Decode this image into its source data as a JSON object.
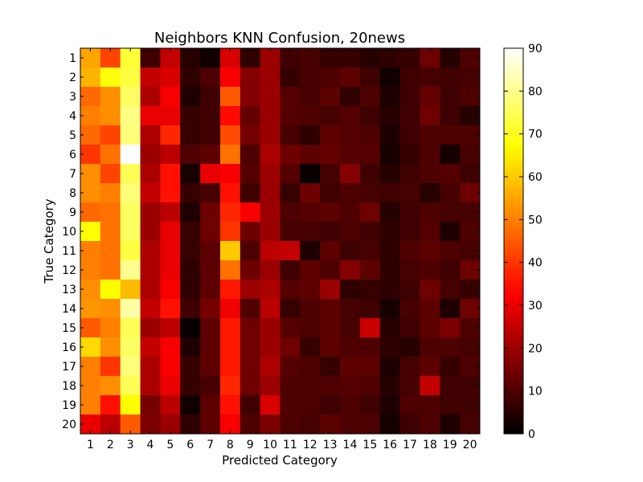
{
  "chart_data": {
    "type": "heatmap",
    "title": "Neighbors KNN Confusion, 20news",
    "xlabel": "Predicted Category",
    "ylabel": "True Category",
    "x_categories": [
      "1",
      "2",
      "3",
      "4",
      "5",
      "6",
      "7",
      "8",
      "9",
      "10",
      "11",
      "12",
      "13",
      "14",
      "15",
      "16",
      "17",
      "18",
      "19",
      "20"
    ],
    "y_categories": [
      "1",
      "2",
      "3",
      "4",
      "5",
      "6",
      "7",
      "8",
      "9",
      "10",
      "11",
      "12",
      "13",
      "14",
      "15",
      "16",
      "17",
      "18",
      "19",
      "20"
    ],
    "colormap": "hot",
    "color_range": [
      0,
      90
    ],
    "colorbar_ticks": [
      0,
      10,
      20,
      30,
      40,
      50,
      60,
      70,
      80,
      90
    ],
    "values": [
      [
        55,
        42,
        72,
        8,
        25,
        5,
        2,
        28,
        6,
        20,
        8,
        9,
        7,
        7,
        5,
        6,
        7,
        14,
        5,
        10
      ],
      [
        57,
        68,
        73,
        25,
        28,
        6,
        10,
        32,
        17,
        20,
        7,
        9,
        10,
        12,
        8,
        2,
        8,
        9,
        8,
        9
      ],
      [
        47,
        52,
        76,
        22,
        32,
        4,
        8,
        45,
        17,
        20,
        11,
        9,
        12,
        6,
        10,
        4,
        8,
        13,
        8,
        10
      ],
      [
        50,
        52,
        79,
        30,
        30,
        7,
        8,
        34,
        13,
        20,
        11,
        10,
        9,
        11,
        8,
        5,
        8,
        14,
        8,
        5
      ],
      [
        47,
        42,
        78,
        22,
        38,
        7,
        8,
        43,
        15,
        20,
        9,
        6,
        12,
        11,
        10,
        4,
        8,
        10,
        10,
        10
      ],
      [
        40,
        48,
        90,
        20,
        24,
        10,
        12,
        48,
        10,
        22,
        14,
        12,
        13,
        11,
        11,
        3,
        7,
        10,
        3,
        9
      ],
      [
        52,
        42,
        75,
        22,
        35,
        3,
        30,
        32,
        11,
        20,
        11,
        1,
        9,
        17,
        8,
        5,
        8,
        10,
        11,
        8
      ],
      [
        52,
        50,
        78,
        25,
        35,
        7,
        9,
        35,
        8,
        20,
        7,
        14,
        8,
        10,
        9,
        8,
        9,
        5,
        9,
        14
      ],
      [
        47,
        48,
        76,
        20,
        24,
        4,
        14,
        38,
        32,
        20,
        10,
        11,
        12,
        10,
        14,
        5,
        8,
        10,
        9,
        9
      ],
      [
        67,
        48,
        76,
        20,
        30,
        7,
        14,
        40,
        14,
        20,
        9,
        9,
        8,
        10,
        8,
        6,
        8,
        11,
        4,
        10
      ],
      [
        50,
        48,
        73,
        22,
        30,
        7,
        12,
        60,
        10,
        24,
        25,
        4,
        12,
        8,
        9,
        6,
        10,
        12,
        10,
        9
      ],
      [
        50,
        48,
        80,
        22,
        30,
        6,
        12,
        48,
        14,
        20,
        8,
        12,
        10,
        17,
        12,
        6,
        9,
        10,
        8,
        14
      ],
      [
        52,
        67,
        58,
        22,
        32,
        6,
        12,
        36,
        20,
        22,
        11,
        12,
        20,
        6,
        7,
        6,
        8,
        14,
        9,
        7
      ],
      [
        53,
        52,
        82,
        25,
        35,
        8,
        15,
        31,
        10,
        24,
        7,
        10,
        12,
        9,
        8,
        3,
        9,
        12,
        4,
        14
      ],
      [
        45,
        50,
        75,
        20,
        24,
        1,
        12,
        36,
        14,
        20,
        11,
        10,
        12,
        9,
        26,
        5,
        8,
        12,
        16,
        10
      ],
      [
        62,
        52,
        76,
        25,
        32,
        4,
        12,
        36,
        14,
        20,
        14,
        7,
        12,
        10,
        10,
        6,
        5,
        10,
        10,
        9
      ],
      [
        50,
        40,
        78,
        22,
        32,
        7,
        12,
        36,
        14,
        22,
        11,
        10,
        7,
        12,
        12,
        4,
        9,
        12,
        7,
        10
      ],
      [
        50,
        52,
        75,
        22,
        30,
        7,
        9,
        38,
        14,
        20,
        10,
        10,
        10,
        11,
        10,
        5,
        9,
        25,
        8,
        8
      ],
      [
        50,
        35,
        67,
        15,
        24,
        2,
        12,
        35,
        8,
        28,
        10,
        10,
        8,
        10,
        8,
        4,
        10,
        10,
        8,
        8
      ],
      [
        30,
        24,
        45,
        16,
        20,
        6,
        12,
        32,
        10,
        16,
        10,
        9,
        12,
        10,
        10,
        3,
        8,
        10,
        4,
        9
      ]
    ]
  }
}
